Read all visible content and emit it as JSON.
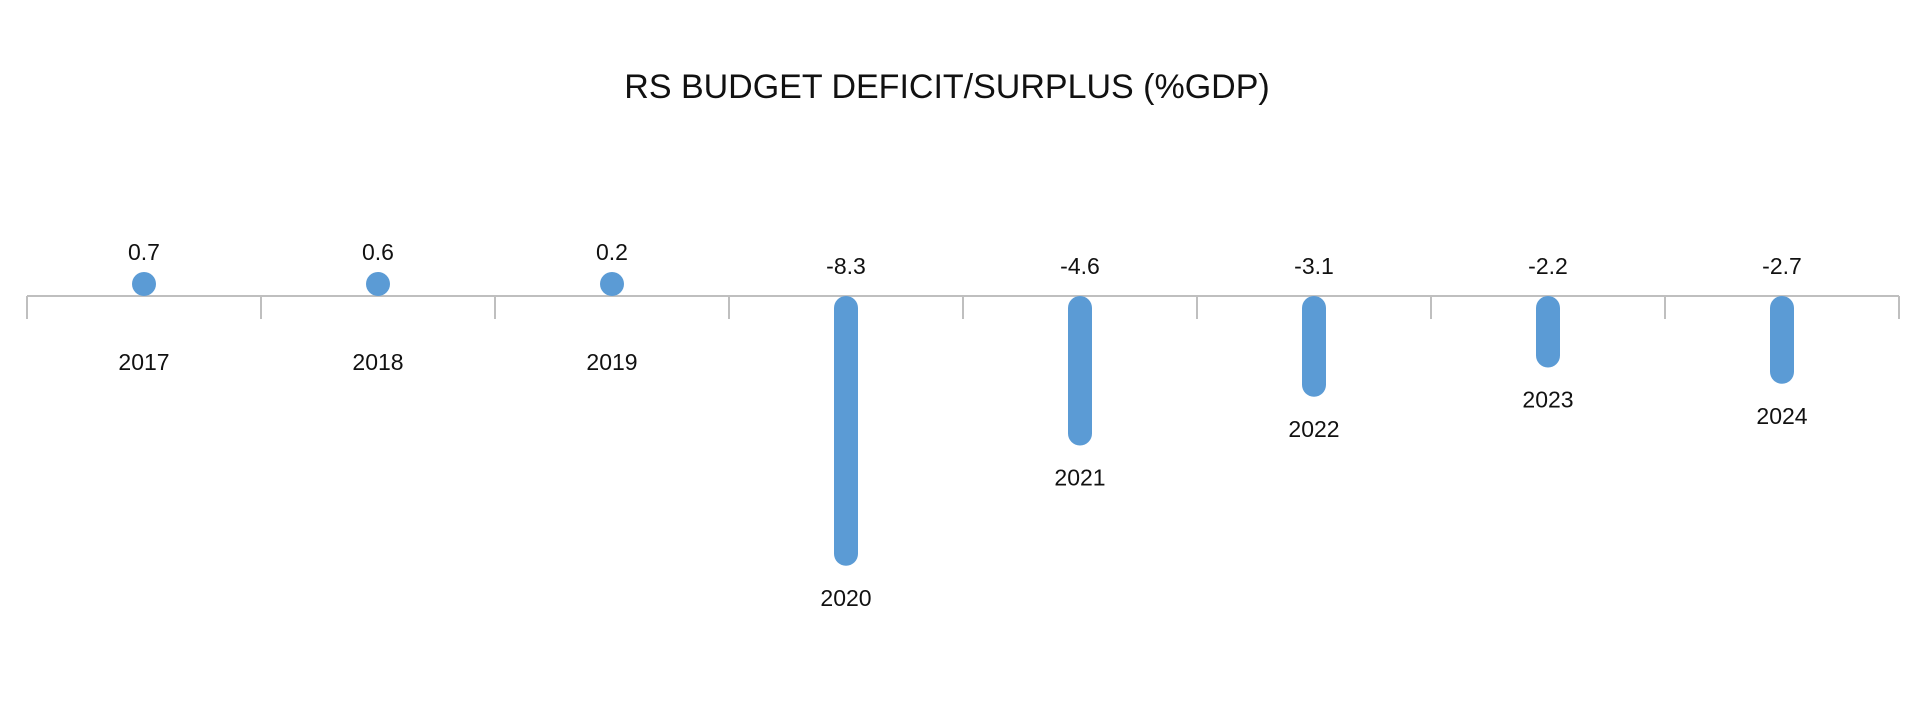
{
  "chart_data": {
    "type": "bar",
    "title": "RS BUDGET DEFICIT/SURPLUS (%GDP)",
    "xlabel": "",
    "ylabel": "",
    "categories": [
      "2017",
      "2018",
      "2019",
      "2020",
      "2021",
      "2022",
      "2023",
      "2024"
    ],
    "values": [
      0.7,
      0.6,
      0.2,
      -8.3,
      -4.6,
      -3.1,
      -2.2,
      -2.7
    ],
    "value_labels": [
      "0.7",
      "0.6",
      "0.2",
      "-8.3",
      "-4.6",
      "-3.1",
      "-2.2",
      "-2.7"
    ],
    "ylim": [
      -8.3,
      0.7
    ],
    "grid": false,
    "legend": "none",
    "bar_color": "#5b9bd5",
    "axis_color": "#bfbfbf"
  }
}
